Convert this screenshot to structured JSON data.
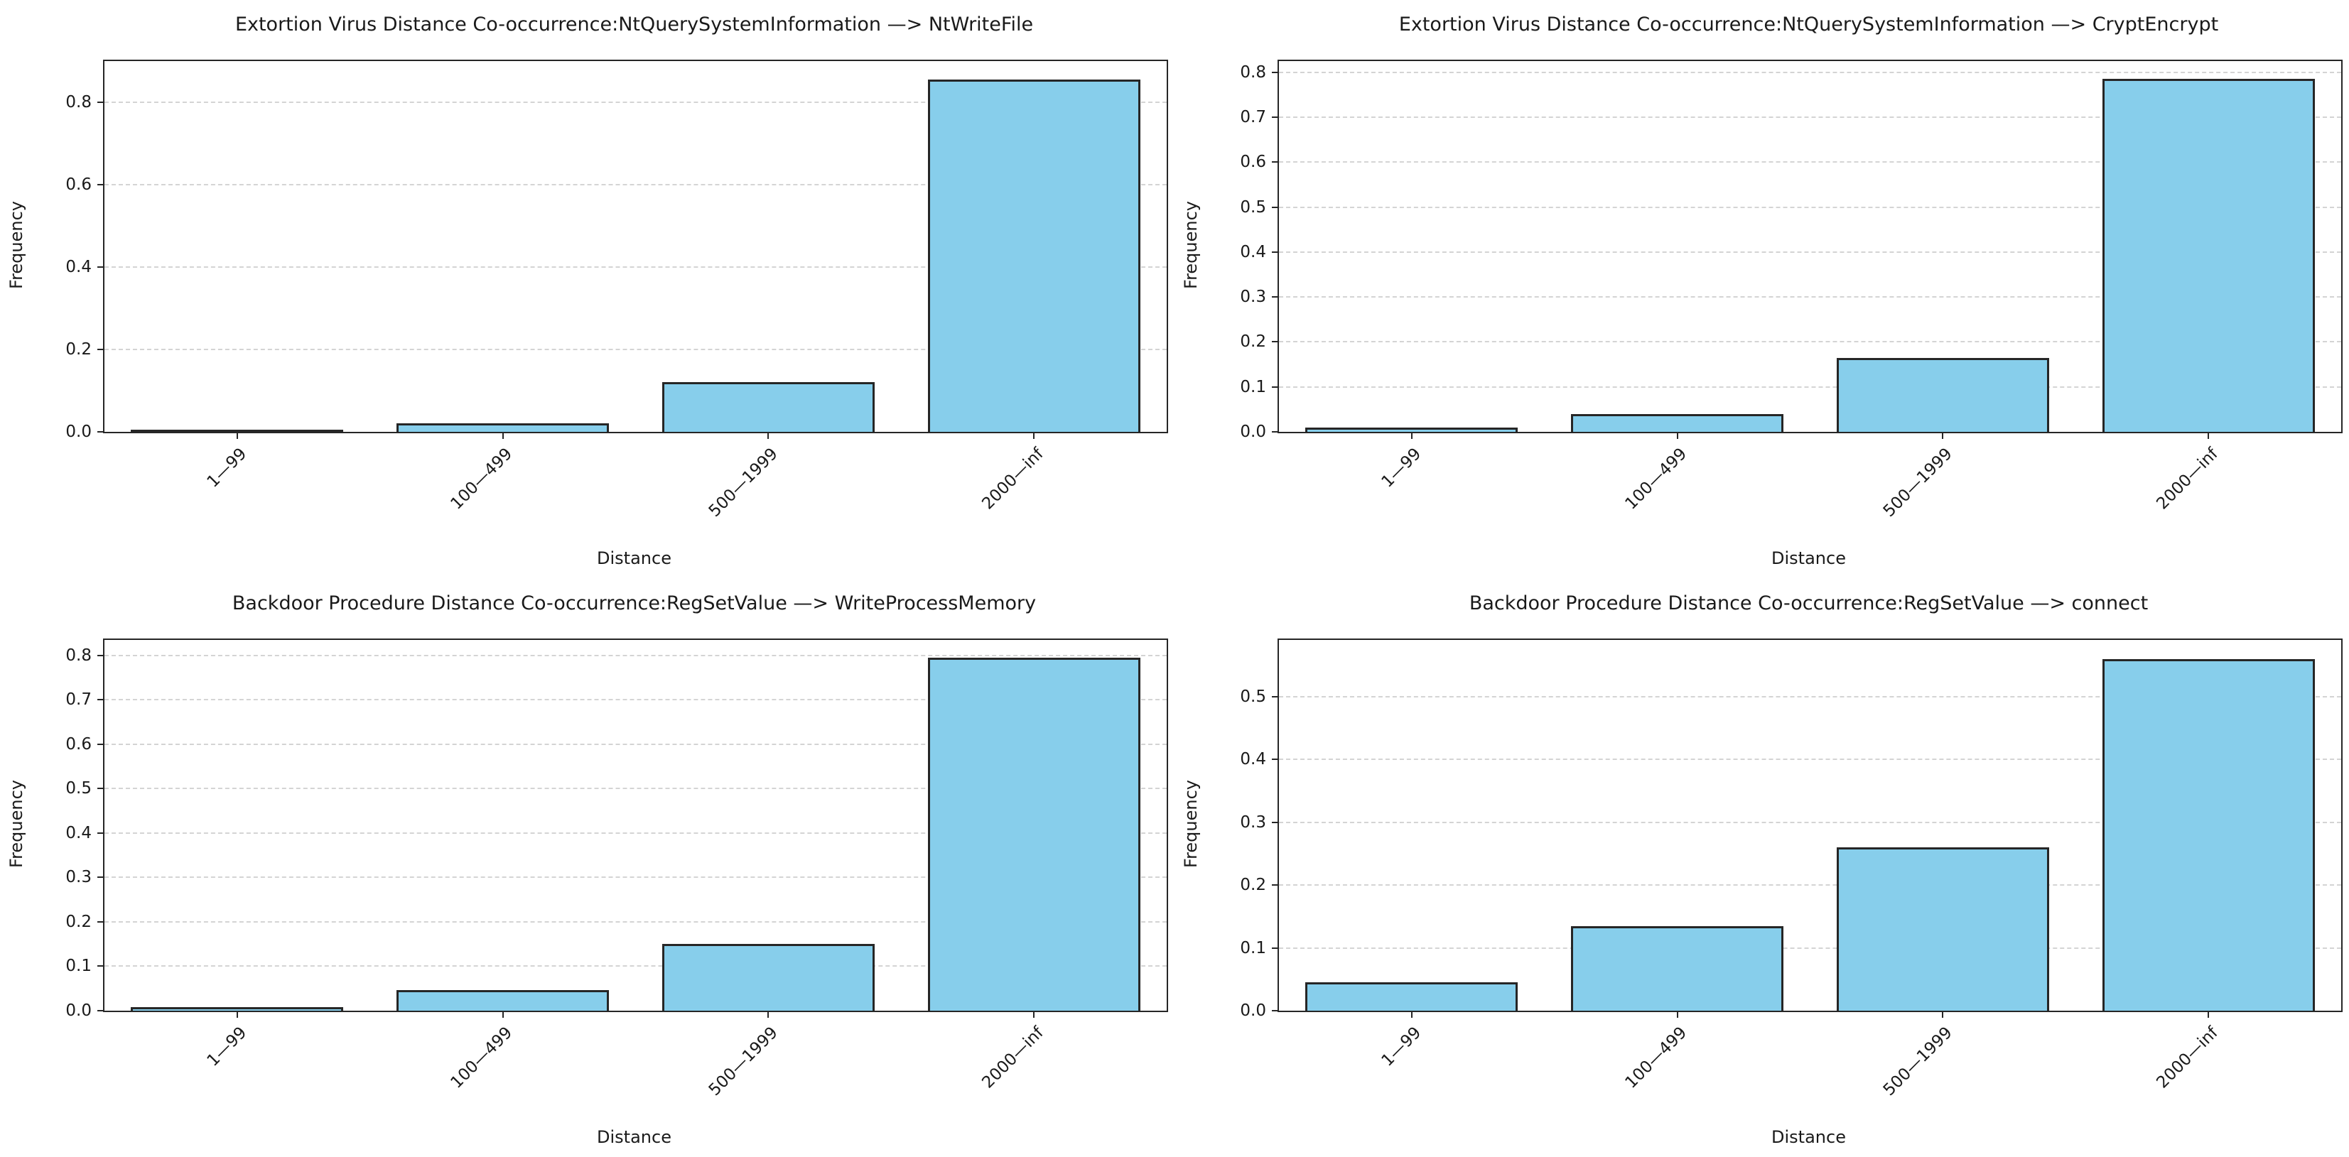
{
  "figure": {
    "background_color": "#ffffff",
    "bar_fill_color": "#87CEEB",
    "bar_edge_color": "#262626",
    "grid_color": "#d4d4d4",
    "text_color": "#1a1a1a"
  },
  "chart_data": [
    {
      "type": "bar",
      "title": "Extortion Virus Distance Co-occurrence:NtQuerySystemInformation —> NtWriteFile",
      "categories": [
        "1—99",
        "100—499",
        "500—1999",
        "2000—inf"
      ],
      "values": [
        0.005,
        0.02,
        0.12,
        0.855
      ],
      "xlabel": "Distance",
      "ylabel": "Frequency",
      "ylim": [
        0,
        0.9
      ],
      "yticks": [
        0.0,
        0.2,
        0.4,
        0.6,
        0.8
      ],
      "grid": "dashed-horizontal",
      "legend": "none"
    },
    {
      "type": "bar",
      "title": "Extortion Virus Distance Co-occurrence:NtQuerySystemInformation —> CryptEncrypt",
      "categories": [
        "1—99",
        "100—499",
        "500—1999",
        "2000—inf"
      ],
      "values": [
        0.01,
        0.04,
        0.165,
        0.785
      ],
      "xlabel": "Distance",
      "ylabel": "Frequency",
      "ylim": [
        0,
        0.825
      ],
      "yticks": [
        0.0,
        0.1,
        0.2,
        0.3,
        0.4,
        0.5,
        0.6,
        0.7,
        0.8
      ],
      "grid": "dashed-horizontal",
      "legend": "none"
    },
    {
      "type": "bar",
      "title": "Backdoor Procedure Distance Co-occurrence:RegSetValue —> WriteProcessMemory",
      "categories": [
        "1—99",
        "100—499",
        "500—1999",
        "2000—inf"
      ],
      "values": [
        0.008,
        0.047,
        0.15,
        0.795
      ],
      "xlabel": "Distance",
      "ylabel": "Frequency",
      "ylim": [
        0,
        0.835
      ],
      "yticks": [
        0.0,
        0.1,
        0.2,
        0.3,
        0.4,
        0.5,
        0.6,
        0.7,
        0.8
      ],
      "grid": "dashed-horizontal",
      "legend": "none"
    },
    {
      "type": "bar",
      "title": "Backdoor Procedure Distance Co-occurrence:RegSetValue —> connect",
      "categories": [
        "1—99",
        "100—499",
        "500—1999",
        "2000—inf"
      ],
      "values": [
        0.045,
        0.135,
        0.26,
        0.56
      ],
      "xlabel": "Distance",
      "ylabel": "Frequency",
      "ylim": [
        0,
        0.59
      ],
      "yticks": [
        0.0,
        0.1,
        0.2,
        0.3,
        0.4,
        0.5
      ],
      "grid": "dashed-horizontal",
      "legend": "none"
    }
  ]
}
